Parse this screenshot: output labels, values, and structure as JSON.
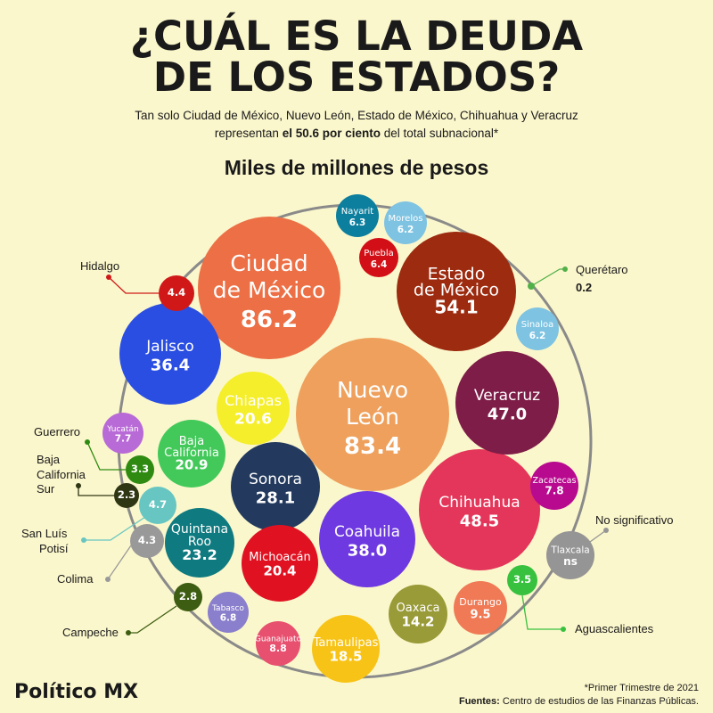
{
  "header": {
    "title_line1": "¿CUÁL ES LA DEUDA",
    "title_line2": "DE LOS ESTADOS?",
    "subtitle_line1": "Tan solo Ciudad de México, Nuevo León, Estado de México, Chihuahua y Veracruz",
    "subtitle_pre": "representan ",
    "subtitle_bold": "el 50.6 por ciento",
    "subtitle_post": " del total subnacional*",
    "unit_label": "Miles de millones de pesos"
  },
  "footer": {
    "note": "*Primer Trimestre de 2021",
    "sources_label": "Fuentes:",
    "sources_text": " Centro de estudios de las Finanzas Públicas.",
    "logo": "Político MX"
  },
  "chart_data": {
    "type": "bubble",
    "title": "¿CUÁL ES LA DEUDA DE LOS ESTADOS?",
    "unit": "Miles de millones de pesos",
    "series": [
      {
        "state": "Ciudad de México",
        "label": [
          "Ciudad",
          "de México"
        ],
        "value": "86.2",
        "color": "#ec6f45"
      },
      {
        "state": "Nuevo León",
        "label": [
          "Nuevo",
          "León"
        ],
        "value": "83.4",
        "color": "#eea05c"
      },
      {
        "state": "Estado de México",
        "label": [
          "Estado",
          "de México"
        ],
        "value": "54.1",
        "color": "#9c2b0f"
      },
      {
        "state": "Chihuahua",
        "label": [
          "Chihuahua"
        ],
        "value": "48.5",
        "color": "#e4365a"
      },
      {
        "state": "Veracruz",
        "label": [
          "Veracruz"
        ],
        "value": "47.0",
        "color": "#7e1d47"
      },
      {
        "state": "Coahuila",
        "label": [
          "Coahuila"
        ],
        "value": "38.0",
        "color": "#6e39e0"
      },
      {
        "state": "Jalisco",
        "label": [
          "Jalisco"
        ],
        "value": "36.4",
        "color": "#2a4ee2"
      },
      {
        "state": "Sonora",
        "label": [
          "Sonora"
        ],
        "value": "28.1",
        "color": "#233a5e"
      },
      {
        "state": "Quintana Roo",
        "label": [
          "Quintana",
          "Roo"
        ],
        "value": "23.2",
        "color": "#0f7a7f"
      },
      {
        "state": "Baja California",
        "label": [
          "Baja",
          "California"
        ],
        "value": "20.9",
        "color": "#43c95a"
      },
      {
        "state": "Chiapas",
        "label": [
          "Chiapas"
        ],
        "value": "20.6",
        "color": "#f5ee2a"
      },
      {
        "state": "Michoacán",
        "label": [
          "Michoacán"
        ],
        "value": "20.4",
        "color": "#e01222"
      },
      {
        "state": "Tamaulipas",
        "label": [
          "Tamaulipas"
        ],
        "value": "18.5",
        "color": "#f7c316"
      },
      {
        "state": "Oaxaca",
        "label": [
          "Oaxaca"
        ],
        "value": "14.2",
        "color": "#999a38"
      },
      {
        "state": "Durango",
        "label": [
          "Durango"
        ],
        "value": "9.5",
        "color": "#f07a55"
      },
      {
        "state": "Guanajuato",
        "label": [
          "Guanajuato"
        ],
        "value": "8.8",
        "color": "#e8506f"
      },
      {
        "state": "Zacatecas",
        "label": [
          "Zacatecas"
        ],
        "value": "7.8",
        "color": "#b80a8f"
      },
      {
        "state": "Yucatán",
        "label": [
          "Yucatán"
        ],
        "value": "7.7",
        "color": "#b86ad6"
      },
      {
        "state": "Tabasco",
        "label": [
          "Tabasco"
        ],
        "value": "6.8",
        "color": "#8a7fcc"
      },
      {
        "state": "Puebla",
        "label": [
          "Puebla"
        ],
        "value": "6.4",
        "color": "#d20f16"
      },
      {
        "state": "Nayarit",
        "label": [
          "Nayarit"
        ],
        "value": "6.3",
        "color": "#0d7f9e"
      },
      {
        "state": "Morelos",
        "label": [
          "Morelos"
        ],
        "value": "6.2",
        "color": "#7ec3e2"
      },
      {
        "state": "Sinaloa",
        "label": [
          "Sinaloa"
        ],
        "value": "6.2",
        "color": "#7ec3e2"
      },
      {
        "state": "San Luís Potisí",
        "label": [],
        "value": "4.7",
        "color": "#67c6c2",
        "callout": [
          "San Luís",
          "Potisí"
        ]
      },
      {
        "state": "Hidalgo",
        "label": [],
        "value": "4.4",
        "color": "#d01818",
        "callout": [
          "Hidalgo"
        ]
      },
      {
        "state": "Colima",
        "label": [],
        "value": "4.3",
        "color": "#999999",
        "callout": [
          "Colima"
        ]
      },
      {
        "state": "Aguascalientes",
        "label": [],
        "value": "3.5",
        "color": "#37c13e",
        "callout": [
          "Aguascalientes"
        ]
      },
      {
        "state": "Guerrero",
        "label": [],
        "value": "3.3",
        "color": "#2f8a12",
        "callout": [
          "Guerrero"
        ]
      },
      {
        "state": "Campeche",
        "label": [],
        "value": "2.8",
        "color": "#3d5d12",
        "callout": [
          "Campeche"
        ]
      },
      {
        "state": "Baja California Sur",
        "label": [],
        "value": "2.3",
        "color": "#2f3613",
        "callout": [
          "Baja",
          "California",
          "Sur"
        ]
      },
      {
        "state": "Querétaro",
        "label": [],
        "value": "0.2",
        "color": "#52b04a",
        "callout": [
          "Querétaro",
          "0.2"
        ]
      },
      {
        "state": "Tlaxcala",
        "label": [
          "Tlaxcala"
        ],
        "value": "ns",
        "color": "#959595",
        "callout": [
          "No significativo"
        ]
      }
    ]
  }
}
